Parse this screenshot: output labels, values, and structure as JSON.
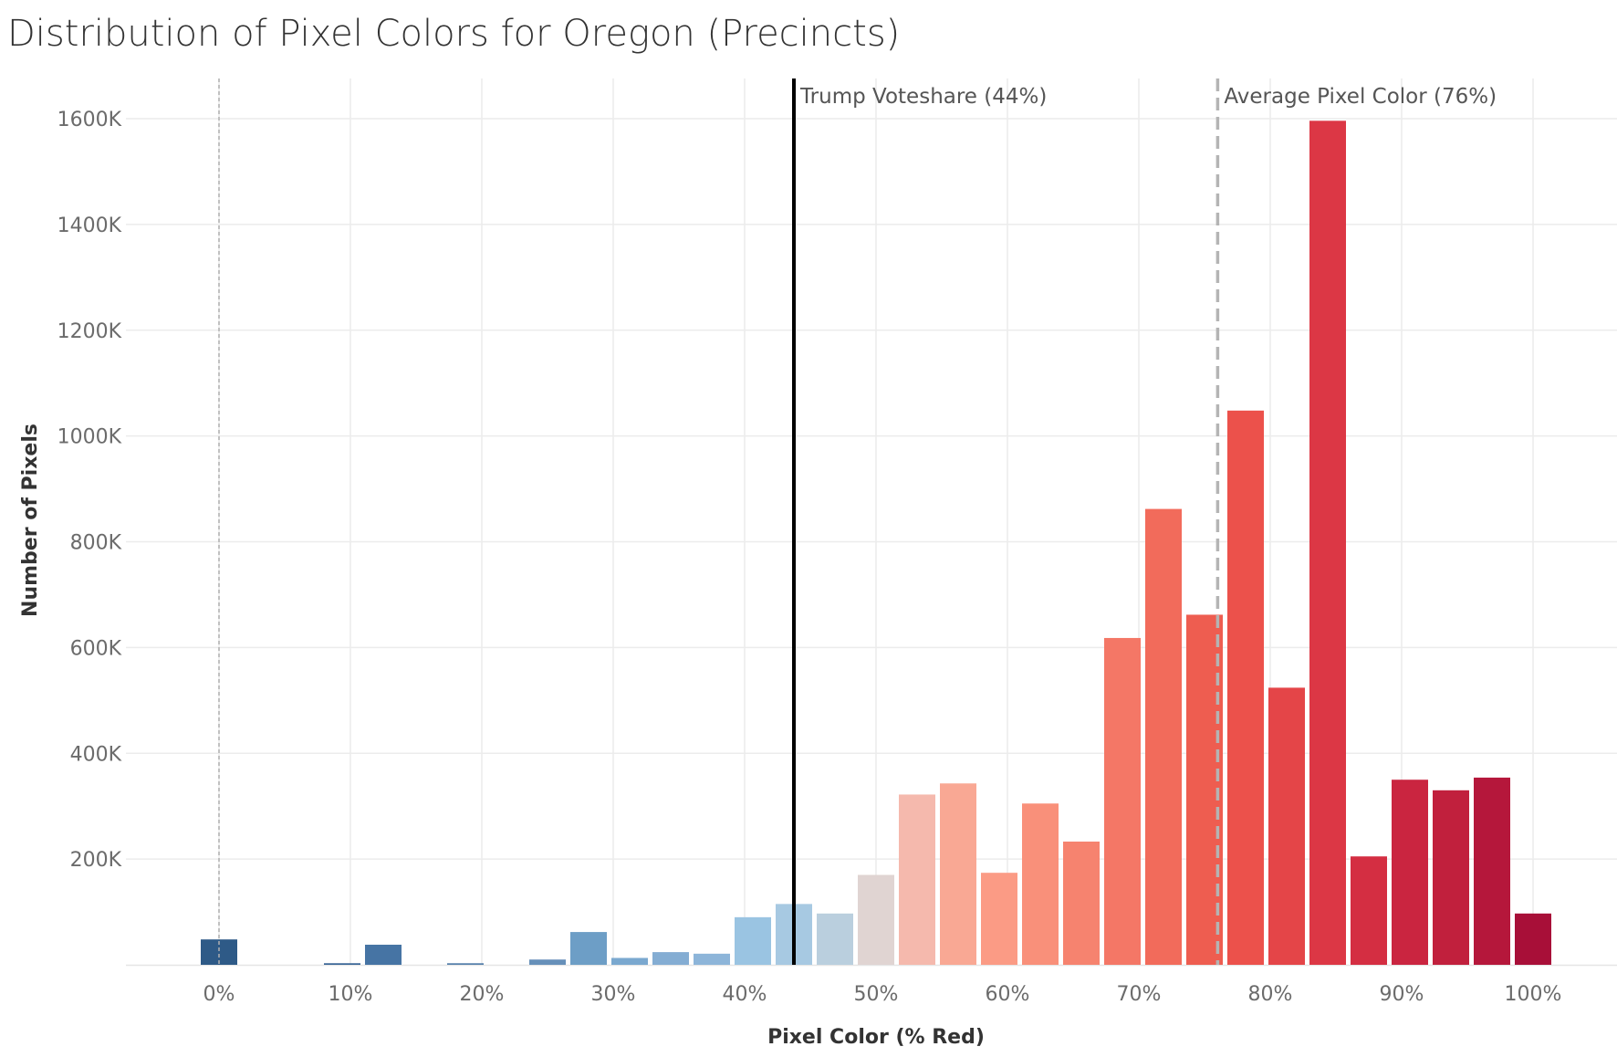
{
  "chart_data": {
    "type": "bar",
    "title": "Distribution of Pixel Colors for Oregon (Precincts)",
    "xlabel": "Pixel Color (% Red)",
    "ylabel": "Number of Pixels",
    "x_unit": "% red",
    "xlim": [
      -6.5,
      106
    ],
    "ylim": [
      0,
      1600000
    ],
    "y_ticks": [
      200000,
      400000,
      600000,
      800000,
      1000000,
      1200000,
      1400000,
      1600000
    ],
    "y_tick_labels": [
      "200K",
      "400K",
      "600K",
      "800K",
      "1000K",
      "1200K",
      "1400K",
      "1600K"
    ],
    "x_ticks": [
      0,
      10,
      20,
      30,
      40,
      50,
      60,
      70,
      80,
      90,
      100
    ],
    "x_tick_labels": [
      "0%",
      "10%",
      "20%",
      "30%",
      "40%",
      "50%",
      "60%",
      "70%",
      "80%",
      "90%",
      "100%"
    ],
    "bin_width": 3.125,
    "grid": true,
    "bars": [
      {
        "x": 0.0,
        "value": 48000,
        "color": "#2e5a87"
      },
      {
        "x": 9.375,
        "value": 3000,
        "color": "#3b6797"
      },
      {
        "x": 12.5,
        "value": 38000,
        "color": "#4674a4"
      },
      {
        "x": 18.75,
        "value": 3000,
        "color": "#5680ab"
      },
      {
        "x": 25.0,
        "value": 10000,
        "color": "#6690b9"
      },
      {
        "x": 28.125,
        "value": 62000,
        "color": "#6d9ec6"
      },
      {
        "x": 31.25,
        "value": 13000,
        "color": "#7aa8cf"
      },
      {
        "x": 34.375,
        "value": 24000,
        "color": "#84add3"
      },
      {
        "x": 37.5,
        "value": 21000,
        "color": "#8db5d9"
      },
      {
        "x": 40.625,
        "value": 90000,
        "color": "#9ac4e2"
      },
      {
        "x": 43.75,
        "value": 115000,
        "color": "#a7c9e2"
      },
      {
        "x": 46.875,
        "value": 97000,
        "color": "#bacfde"
      },
      {
        "x": 50.0,
        "value": 170000,
        "color": "#e0d4d2"
      },
      {
        "x": 53.125,
        "value": 322000,
        "color": "#f5b9ad"
      },
      {
        "x": 56.25,
        "value": 343000,
        "color": "#f9a894"
      },
      {
        "x": 59.375,
        "value": 174000,
        "color": "#fb9b85"
      },
      {
        "x": 62.5,
        "value": 305000,
        "color": "#f9907a"
      },
      {
        "x": 65.625,
        "value": 233000,
        "color": "#f6836f"
      },
      {
        "x": 68.75,
        "value": 618000,
        "color": "#f47766"
      },
      {
        "x": 71.875,
        "value": 862000,
        "color": "#f26b5b"
      },
      {
        "x": 75.0,
        "value": 662000,
        "color": "#ee5d50"
      },
      {
        "x": 78.125,
        "value": 1048000,
        "color": "#ec514b"
      },
      {
        "x": 81.25,
        "value": 524000,
        "color": "#e44548"
      },
      {
        "x": 84.375,
        "value": 1596000,
        "color": "#dc3745"
      },
      {
        "x": 87.5,
        "value": 205000,
        "color": "#d42e42"
      },
      {
        "x": 90.625,
        "value": 350000,
        "color": "#ca2540"
      },
      {
        "x": 93.75,
        "value": 330000,
        "color": "#c1203d"
      },
      {
        "x": 96.875,
        "value": 354000,
        "color": "#b5173b"
      },
      {
        "x": 100.0,
        "value": 97000,
        "color": "#a80f38"
      }
    ],
    "reference_lines": [
      {
        "x": 0,
        "style": "dotted",
        "color": "#b0b0b0",
        "label": ""
      },
      {
        "x": 43.75,
        "style": "solid",
        "color": "#000000",
        "label": "Trump Voteshare (44%)"
      },
      {
        "x": 76.0,
        "style": "dashed",
        "color": "#b4b4b4",
        "label": "Average Pixel Color (76%)"
      }
    ]
  }
}
